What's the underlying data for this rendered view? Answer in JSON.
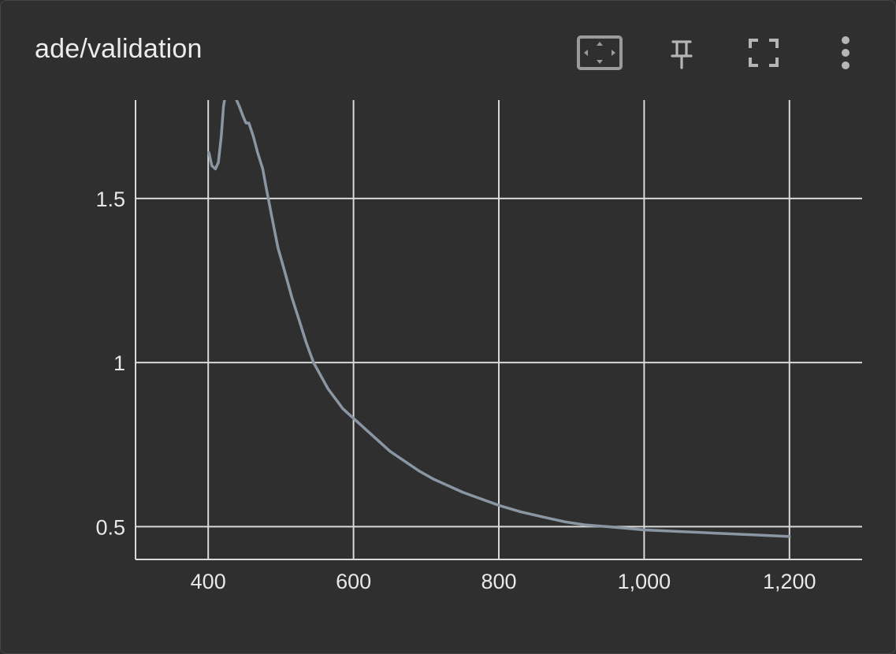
{
  "card": {
    "title": "ade/validation"
  },
  "toolbar": {
    "icons": [
      "fit-to-data-icon",
      "pin-icon",
      "fullscreen-icon",
      "more-options-icon"
    ],
    "icon_color": "#9e9e9e"
  },
  "colors": {
    "background": "#2f2f2f",
    "grid": "#d9d9d9",
    "axis_text": "#e8e8e8",
    "series": "#8a96a3"
  },
  "chart_data": {
    "type": "line",
    "title": "ade/validation",
    "xlabel": "",
    "ylabel": "",
    "xlim": [
      300,
      1300
    ],
    "ylim": [
      0.4,
      1.8
    ],
    "grid": true,
    "x_ticks": [
      400,
      600,
      800,
      1000,
      1200
    ],
    "x_tick_labels": [
      "400",
      "600",
      "800",
      "1,000",
      "1,200"
    ],
    "y_ticks": [
      0.5,
      1,
      1.5
    ],
    "y_tick_labels": [
      "0.5",
      "1",
      "1.5"
    ],
    "series": [
      {
        "x": [
          401,
          405,
          410,
          414,
          418,
          421,
          424,
          428,
          432,
          437,
          443,
          448,
          452,
          456,
          462,
          468,
          475,
          480,
          488,
          496,
          505,
          515,
          525,
          535,
          545,
          555,
          565,
          575,
          585,
          595,
          605,
          620,
          635,
          650,
          670,
          690,
          710,
          730,
          750,
          775,
          800,
          830,
          860,
          890,
          920,
          950,
          1000,
          1050,
          1100,
          1150,
          1200
        ],
        "y": [
          1.64,
          1.6,
          1.59,
          1.61,
          1.69,
          1.78,
          1.82,
          1.84,
          1.83,
          1.81,
          1.78,
          1.75,
          1.73,
          1.73,
          1.69,
          1.64,
          1.59,
          1.53,
          1.44,
          1.35,
          1.28,
          1.2,
          1.13,
          1.06,
          1.0,
          0.96,
          0.92,
          0.89,
          0.86,
          0.84,
          0.82,
          0.79,
          0.76,
          0.73,
          0.7,
          0.67,
          0.645,
          0.625,
          0.605,
          0.585,
          0.565,
          0.545,
          0.53,
          0.515,
          0.505,
          0.5,
          0.49,
          0.485,
          0.48,
          0.475,
          0.47
        ]
      }
    ]
  }
}
